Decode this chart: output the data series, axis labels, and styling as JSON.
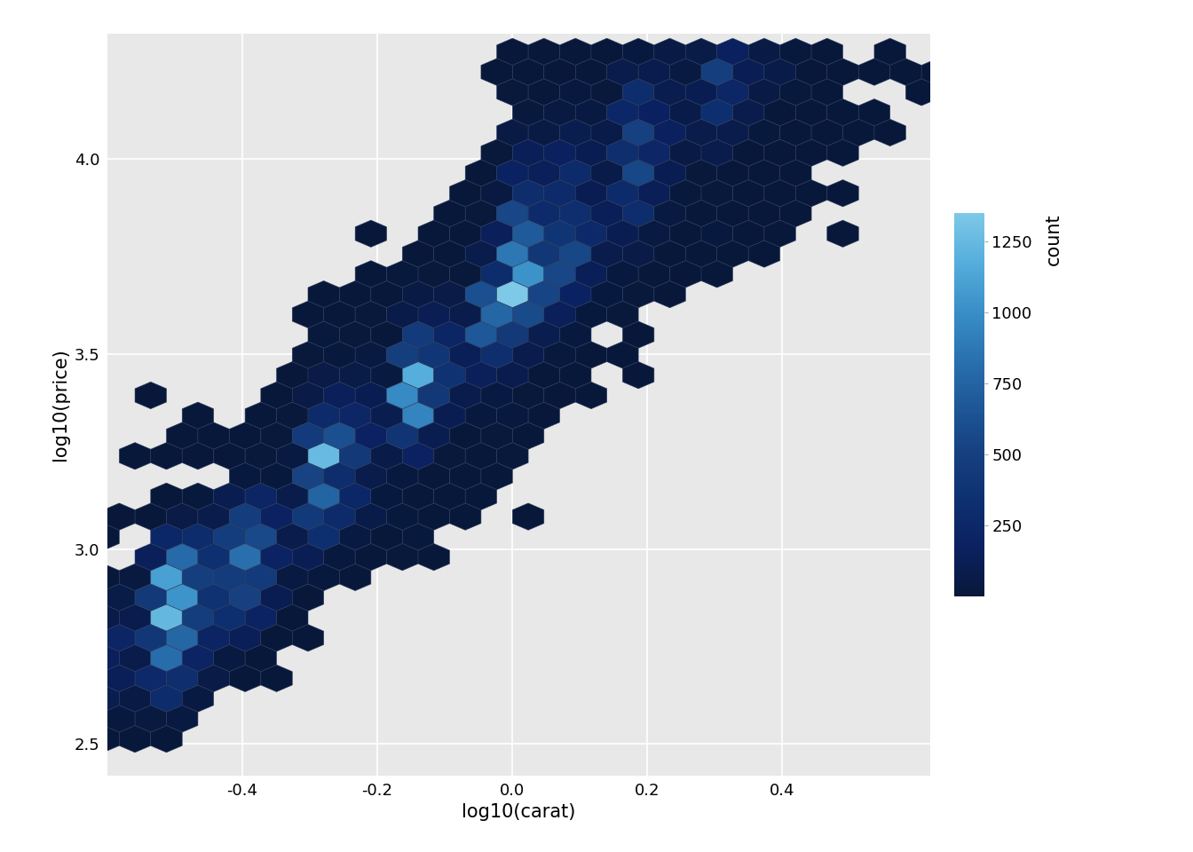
{
  "xlabel": "log10(carat)",
  "ylabel": "log10(price)",
  "xlim": [
    -0.6,
    0.62
  ],
  "ylim": [
    2.42,
    4.32
  ],
  "xticks": [
    -0.4,
    -0.2,
    0.0,
    0.2,
    0.4
  ],
  "yticks": [
    2.5,
    3.0,
    3.5,
    4.0
  ],
  "colorbar_label": "count",
  "colorbar_ticks": [
    250,
    500,
    750,
    1000,
    1250
  ],
  "cmap_colors": [
    "#08183a",
    "#0b2060",
    "#0e3070",
    "#164080",
    "#1e5898",
    "#2a72b0",
    "#3a90c8",
    "#55aedc",
    "#7ec8e8"
  ],
  "background_color": "#e8e8e8",
  "panel_background": "#e8e8e8",
  "grid_color": "#ffffff",
  "edge_color": "#2a3a5a",
  "gridsize": 30,
  "label_fontsize": 15,
  "tick_fontsize": 13,
  "colorbar_title_fontsize": 15,
  "colorbar_tick_fontsize": 13,
  "vmax": 1350
}
